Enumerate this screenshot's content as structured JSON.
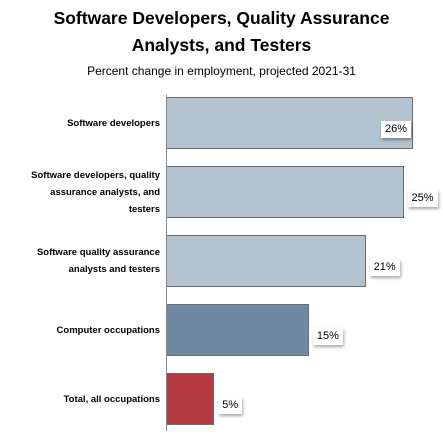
{
  "title_line1": "Software Developers, Quality Assurance",
  "title_line2": "Analysts, and Testers",
  "subtitle": "Percent change in employment, projected 2021-31",
  "chart_data": {
    "type": "bar",
    "orientation": "horizontal",
    "title": "Software Developers, Quality Assurance Analysts, and Testers",
    "subtitle": "Percent change in employment, projected 2021-31",
    "xlabel": "",
    "ylabel": "",
    "xlim": [
      0,
      26
    ],
    "grid": false,
    "categories": [
      "Software developers",
      "Software developers, quality assurance analysts, and testers",
      "Software quality assurance analysts and testers",
      "Computer occupations",
      "Total, all occupations"
    ],
    "label_lines": [
      [
        "Software developers"
      ],
      [
        "Software developers, quality",
        "assurance analysts, and",
        "testers"
      ],
      [
        "Software quality assurance",
        "analysts and testers"
      ],
      [
        "Computer occupations"
      ],
      [
        "Total, all occupations"
      ]
    ],
    "values": [
      26,
      25,
      21,
      15,
      5
    ],
    "value_labels": [
      "26%",
      "25%",
      "21%",
      "15%",
      "5%"
    ],
    "colors": [
      "#b3c3cf",
      "#b3c3cf",
      "#b3c3cf",
      "#6e8aa3",
      "#b4393e"
    ]
  }
}
